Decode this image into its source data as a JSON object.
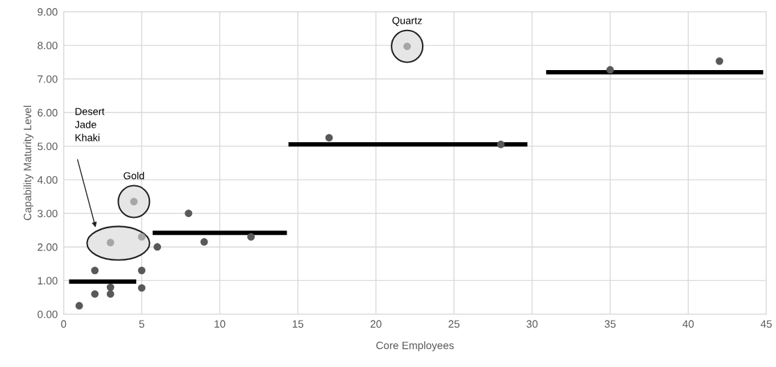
{
  "chart_data": {
    "type": "scatter",
    "xlabel": "Core Employees",
    "ylabel": "Capability Maturity Level",
    "xlim": [
      0,
      45
    ],
    "xticks": [
      0,
      5,
      10,
      15,
      20,
      25,
      30,
      35,
      40,
      45
    ],
    "ylim": [
      0,
      9
    ],
    "yticks": [
      {
        "value": 0,
        "label": "0.00"
      },
      {
        "value": 1,
        "label": "1.00"
      },
      {
        "value": 2,
        "label": "2.00"
      },
      {
        "value": 3,
        "label": "3.00"
      },
      {
        "value": 4,
        "label": "4.00"
      },
      {
        "value": 5,
        "label": "5.00"
      },
      {
        "value": 6,
        "label": "6.00"
      },
      {
        "value": 7,
        "label": "7.00"
      },
      {
        "value": 8,
        "label": "8.00"
      },
      {
        "value": 9,
        "label": "9.00"
      }
    ],
    "grid": true,
    "marker": "circle",
    "series": [
      {
        "color": "#595959",
        "x": [
          1,
          2,
          2,
          3,
          3,
          5,
          5,
          6,
          8,
          9,
          12,
          17,
          28,
          35,
          42
        ],
        "values": [
          0.25,
          0.6,
          1.3,
          0.8,
          0.6,
          1.3,
          0.78,
          2.0,
          3.0,
          2.15,
          2.3,
          5.25,
          5.05,
          7.27,
          7.53
        ]
      },
      {
        "color": "#a6a6a6",
        "x": [
          3,
          4.5,
          5,
          22
        ],
        "values": [
          2.13,
          3.35,
          2.3,
          7.97
        ]
      },
      {
        "type": "line",
        "color": "#000000",
        "marker": "none",
        "x": [
          0.35,
          4.65
        ],
        "values": [
          0.97,
          0.97
        ]
      },
      {
        "type": "line",
        "color": "#000000",
        "marker": "none",
        "x": [
          5.7,
          14.3
        ],
        "values": [
          2.42,
          2.42
        ]
      },
      {
        "type": "line",
        "color": "#000000",
        "marker": "none",
        "x": [
          14.4,
          29.7
        ],
        "values": [
          5.05,
          5.05
        ]
      },
      {
        "type": "line",
        "color": "#000000",
        "marker": "none",
        "x": [
          30.9,
          44.8
        ],
        "values": [
          7.2,
          7.2
        ]
      }
    ],
    "annotations": [
      "Desert\nJade\nKhaki",
      {
        "text": "Gold",
        "x": 4.5,
        "y": 3.35
      },
      {
        "text": "Quartz",
        "x": 22,
        "y": 7.97
      }
    ]
  }
}
